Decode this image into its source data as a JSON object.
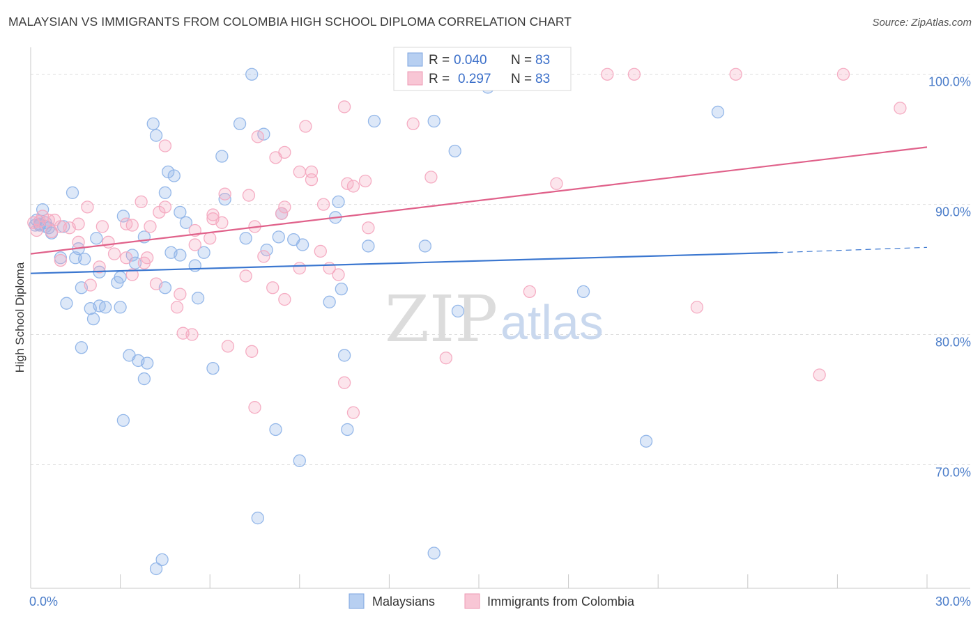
{
  "title": "MALAYSIAN VS IMMIGRANTS FROM COLOMBIA HIGH SCHOOL DIPLOMA CORRELATION CHART",
  "source": "Source: ZipAtlas.com",
  "watermark": {
    "zip": "ZIP",
    "atlas": "atlas"
  },
  "chart_data": {
    "type": "scatter",
    "xlabel": "",
    "ylabel": "High School Diploma",
    "xlim": [
      0,
      30
    ],
    "ylim": [
      60.5,
      102.5
    ],
    "x_tick_labels": [
      {
        "value": 0,
        "label": "0.0%"
      },
      {
        "value": 30,
        "label": "30.0%"
      }
    ],
    "x_minor_ticks": [
      0,
      3,
      6,
      9,
      12,
      15,
      18,
      21,
      24,
      27,
      30
    ],
    "y_ticks": [
      {
        "value": 100,
        "label": "100.0%"
      },
      {
        "value": 90,
        "label": "90.0%"
      },
      {
        "value": 80,
        "label": "80.0%"
      },
      {
        "value": 70,
        "label": "70.0%"
      }
    ],
    "grid": true,
    "legend_top": {
      "position": "top-center",
      "entries": [
        {
          "r_label": "R =",
          "r_value": "0.040",
          "n_label": "N =",
          "n_value": "83"
        },
        {
          "r_label": "R =",
          "r_value": "0.297",
          "n_label": "N =",
          "n_value": "83"
        }
      ]
    },
    "series": [
      {
        "name": "Malaysians",
        "color": "#8fb4e8",
        "line_color": "#3b77d0",
        "trend": {
          "x_start": 0,
          "y_start": 84.7,
          "x_solid_end": 25,
          "y_solid_end": 86.3,
          "x_dash_end": 30,
          "y_dash_end": 86.7
        },
        "points": [
          [
            0.2,
            88.8
          ],
          [
            0.3,
            88.4
          ],
          [
            0.4,
            89.6
          ],
          [
            0.5,
            88.6
          ],
          [
            0.7,
            87.8
          ],
          [
            1.0,
            85.9
          ],
          [
            0.5,
            88.3
          ],
          [
            0.3,
            88.5
          ],
          [
            1.4,
            90.9
          ],
          [
            1.5,
            85.9
          ],
          [
            1.6,
            86.6
          ],
          [
            1.8,
            85.8
          ],
          [
            2.2,
            87.4
          ],
          [
            2.3,
            84.8
          ],
          [
            2.5,
            82.1
          ],
          [
            3.0,
            82.1
          ],
          [
            3.1,
            89.1
          ],
          [
            3.4,
            86.1
          ],
          [
            3.5,
            85.5
          ],
          [
            3.8,
            87.5
          ],
          [
            4.1,
            96.2
          ],
          [
            4.2,
            95.3
          ],
          [
            4.6,
            92.5
          ],
          [
            4.8,
            92.2
          ],
          [
            4.5,
            90.9
          ],
          [
            5.0,
            89.4
          ],
          [
            5.2,
            88.6
          ],
          [
            5.0,
            86.1
          ],
          [
            4.7,
            86.3
          ],
          [
            5.5,
            85.3
          ],
          [
            5.8,
            86.3
          ],
          [
            6.4,
            93.7
          ],
          [
            6.5,
            90.4
          ],
          [
            7.0,
            96.2
          ],
          [
            7.4,
            100.0
          ],
          [
            7.8,
            95.4
          ],
          [
            7.2,
            87.4
          ],
          [
            7.9,
            86.5
          ],
          [
            8.3,
            87.5
          ],
          [
            8.4,
            89.3
          ],
          [
            8.8,
            87.3
          ],
          [
            9.1,
            86.9
          ],
          [
            10.2,
            89.0
          ],
          [
            10.3,
            90.2
          ],
          [
            11.3,
            86.8
          ],
          [
            11.5,
            96.4
          ],
          [
            13.2,
            86.8
          ],
          [
            13.5,
            96.4
          ],
          [
            14.2,
            94.1
          ],
          [
            15.3,
            99.0
          ],
          [
            23.0,
            97.1
          ],
          [
            1.2,
            82.4
          ],
          [
            1.7,
            83.6
          ],
          [
            2.0,
            82.0
          ],
          [
            2.1,
            81.2
          ],
          [
            2.3,
            82.2
          ],
          [
            2.9,
            84.0
          ],
          [
            3.0,
            84.4
          ],
          [
            4.5,
            83.6
          ],
          [
            5.6,
            82.8
          ],
          [
            1.7,
            79.0
          ],
          [
            3.3,
            78.4
          ],
          [
            3.6,
            78.0
          ],
          [
            3.9,
            77.8
          ],
          [
            3.8,
            76.6
          ],
          [
            6.1,
            77.4
          ],
          [
            10.0,
            82.5
          ],
          [
            10.4,
            83.5
          ],
          [
            10.5,
            78.4
          ],
          [
            14.3,
            81.8
          ],
          [
            18.5,
            83.3
          ],
          [
            3.1,
            73.4
          ],
          [
            8.2,
            72.7
          ],
          [
            10.6,
            72.7
          ],
          [
            9.0,
            70.3
          ],
          [
            20.6,
            71.8
          ],
          [
            7.6,
            65.9
          ],
          [
            4.4,
            62.7
          ],
          [
            4.2,
            62.0
          ],
          [
            13.5,
            63.2
          ],
          [
            0.15,
            88.4
          ],
          [
            0.6,
            88.2
          ],
          [
            1.1,
            88.3
          ]
        ]
      },
      {
        "name": "Immigrants from Colombia",
        "color": "#f4a9c0",
        "line_color": "#e0618a",
        "trend": {
          "x_start": 0,
          "y_start": 86.2,
          "x_solid_end": 30,
          "y_solid_end": 94.4
        },
        "points": [
          [
            0.1,
            88.6
          ],
          [
            0.3,
            88.7
          ],
          [
            0.4,
            89.1
          ],
          [
            0.6,
            88.8
          ],
          [
            0.7,
            87.9
          ],
          [
            1.0,
            88.3
          ],
          [
            1.3,
            88.2
          ],
          [
            1.6,
            88.5
          ],
          [
            1.9,
            89.8
          ],
          [
            1.6,
            87.1
          ],
          [
            2.4,
            88.3
          ],
          [
            2.6,
            87.1
          ],
          [
            2.8,
            86.2
          ],
          [
            3.2,
            88.5
          ],
          [
            3.4,
            88.4
          ],
          [
            3.7,
            90.2
          ],
          [
            4.0,
            88.3
          ],
          [
            4.3,
            89.4
          ],
          [
            4.5,
            89.8
          ],
          [
            5.5,
            88.0
          ],
          [
            6.1,
            88.9
          ],
          [
            6.1,
            89.2
          ],
          [
            6.4,
            88.6
          ],
          [
            6.5,
            90.8
          ],
          [
            7.3,
            90.7
          ],
          [
            7.6,
            95.2
          ],
          [
            7.5,
            88.3
          ],
          [
            8.5,
            89.8
          ],
          [
            8.4,
            89.3
          ],
          [
            9.0,
            92.5
          ],
          [
            9.4,
            92.5
          ],
          [
            9.4,
            91.9
          ],
          [
            9.8,
            90.0
          ],
          [
            10.6,
            91.6
          ],
          [
            10.8,
            91.4
          ],
          [
            11.2,
            91.8
          ],
          [
            11.3,
            88.2
          ],
          [
            13.4,
            92.1
          ],
          [
            17.6,
            91.6
          ],
          [
            19.3,
            100.0
          ],
          [
            20.2,
            100.0
          ],
          [
            23.6,
            100.0
          ],
          [
            27.2,
            100.0
          ],
          [
            29.1,
            97.4
          ],
          [
            12.8,
            96.2
          ],
          [
            10.5,
            97.5
          ],
          [
            9.2,
            96.0
          ],
          [
            4.5,
            94.5
          ],
          [
            8.2,
            93.6
          ],
          [
            8.5,
            94.0
          ],
          [
            1.0,
            85.7
          ],
          [
            2.0,
            83.8
          ],
          [
            2.3,
            85.2
          ],
          [
            3.2,
            85.9
          ],
          [
            3.4,
            84.6
          ],
          [
            3.8,
            85.5
          ],
          [
            3.9,
            85.9
          ],
          [
            4.2,
            83.9
          ],
          [
            4.9,
            82.1
          ],
          [
            5.0,
            83.1
          ],
          [
            7.2,
            84.5
          ],
          [
            8.1,
            83.6
          ],
          [
            8.5,
            82.7
          ],
          [
            9.0,
            85.1
          ],
          [
            9.7,
            86.4
          ],
          [
            10.0,
            85.1
          ],
          [
            10.3,
            84.6
          ],
          [
            5.1,
            80.1
          ],
          [
            5.4,
            80.0
          ],
          [
            6.6,
            79.1
          ],
          [
            7.4,
            78.7
          ],
          [
            13.9,
            78.2
          ],
          [
            7.5,
            74.4
          ],
          [
            10.5,
            76.3
          ],
          [
            10.8,
            74.0
          ],
          [
            16.7,
            83.3
          ],
          [
            22.3,
            82.1
          ],
          [
            26.4,
            76.9
          ],
          [
            5.5,
            86.9
          ],
          [
            6.0,
            87.4
          ],
          [
            7.8,
            86.0
          ],
          [
            0.2,
            88.0
          ],
          [
            0.8,
            88.8
          ]
        ]
      }
    ]
  },
  "legend_bottom": [
    {
      "label": "Malaysians"
    },
    {
      "label": "Immigrants from Colombia"
    }
  ]
}
